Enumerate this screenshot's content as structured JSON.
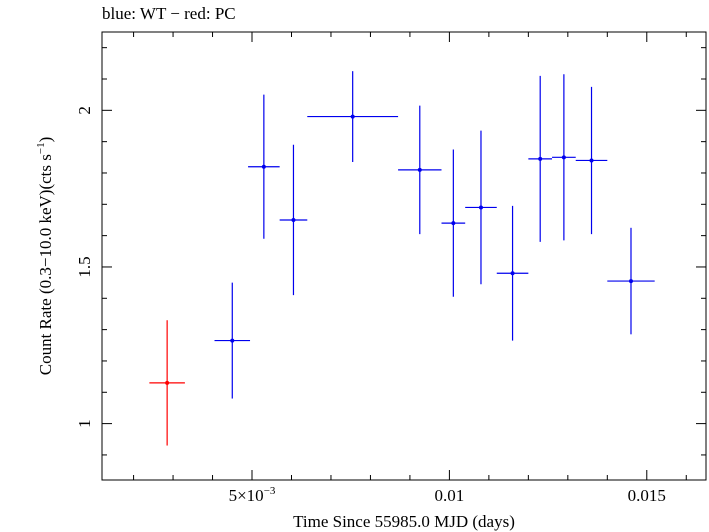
{
  "chart_data": {
    "type": "scatter",
    "title": "blue: WT − red: PC",
    "xlabel": "Time Since 55985.0 MJD (days)",
    "ylabel_main": "Count Rate (0.3−10.0 keV)(cts s",
    "ylabel_sup": "−1",
    "ylabel_close": ")",
    "xlim": [
      0.0012,
      0.0165
    ],
    "ylim": [
      0.82,
      2.25
    ],
    "xticks": [
      {
        "value": 0.005,
        "label": "5×10",
        "sup": "−3"
      },
      {
        "value": 0.01,
        "label": "0.01",
        "sup": ""
      },
      {
        "value": 0.015,
        "label": "0.015",
        "sup": ""
      }
    ],
    "yticks": [
      {
        "value": 1,
        "label": "1"
      },
      {
        "value": 1.5,
        "label": "1.5"
      },
      {
        "value": 2,
        "label": "2"
      }
    ],
    "series": [
      {
        "mode": "PC",
        "color": "#ff0000",
        "points": [
          {
            "x": 0.00285,
            "xerr": 0.00045,
            "y": 1.13,
            "yerr": 0.2
          }
        ]
      },
      {
        "mode": "WT",
        "color": "#0000ee",
        "points": [
          {
            "x": 0.0045,
            "xerr": 0.00045,
            "y": 1.265,
            "yerr": 0.185
          },
          {
            "x": 0.0053,
            "xerr": 0.0004,
            "y": 1.82,
            "yerr": 0.23
          },
          {
            "x": 0.00605,
            "xerr": 0.00035,
            "y": 1.65,
            "yerr": 0.24
          },
          {
            "x": 0.00755,
            "xerr": 0.00115,
            "y": 1.98,
            "yerr": 0.145
          },
          {
            "x": 0.00925,
            "xerr": 0.00055,
            "y": 1.81,
            "yerr": 0.205
          },
          {
            "x": 0.0101,
            "xerr": 0.0003,
            "y": 1.64,
            "yerr": 0.235
          },
          {
            "x": 0.0108,
            "xerr": 0.0004,
            "y": 1.69,
            "yerr": 0.245
          },
          {
            "x": 0.0116,
            "xerr": 0.0004,
            "y": 1.48,
            "yerr": 0.215
          },
          {
            "x": 0.0123,
            "xerr": 0.0003,
            "y": 1.845,
            "yerr": 0.265
          },
          {
            "x": 0.0129,
            "xerr": 0.0003,
            "y": 1.85,
            "yerr": 0.265
          },
          {
            "x": 0.0136,
            "xerr": 0.0004,
            "y": 1.84,
            "yerr": 0.235
          },
          {
            "x": 0.0146,
            "xerr": 0.0006,
            "y": 1.455,
            "yerr": 0.17
          }
        ]
      }
    ]
  }
}
